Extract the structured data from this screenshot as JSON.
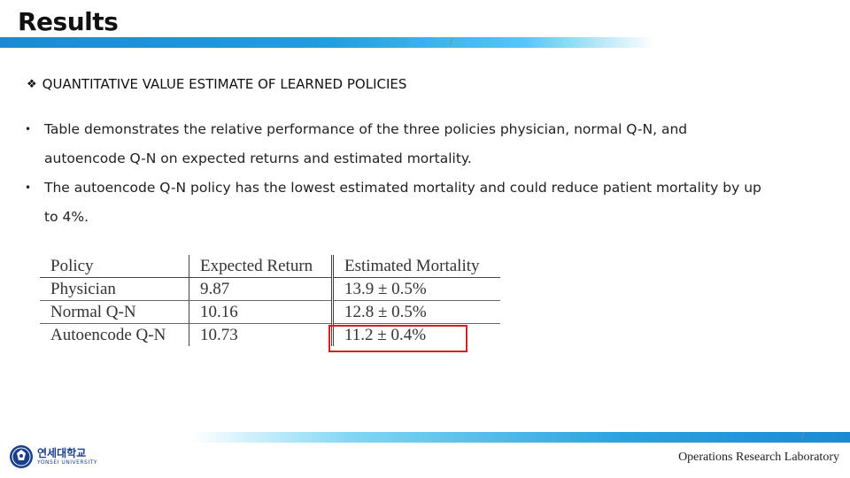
{
  "slide": {
    "title": "Results",
    "section_heading": "QUANTITATIVE VALUE ESTIMATE OF LEARNED POLICIES",
    "bullets": [
      "Table demonstrates the relative performance of the three policies physician, normal Q-N, and autoencode Q-N on expected returns and estimated mortality.",
      "The autoencode Q-N policy has the lowest estimated mortality and could reduce patient mortality by up to 4%."
    ]
  },
  "table": {
    "headers": [
      "Policy",
      "Expected Return",
      "Estimated Mortality"
    ],
    "rows": [
      [
        "Physician",
        "9.87",
        "13.9 ± 0.5%"
      ],
      [
        "Normal Q-N",
        "10.16",
        "12.8 ± 0.5%"
      ],
      [
        "Autoencode Q-N",
        "10.73",
        "11.2 ± 0.4%"
      ]
    ],
    "highlighted_cell": "11.2 ± 0.4%"
  },
  "footer": {
    "university_kr": "연세대학교",
    "university_en": "YONSEI UNIVERSITY",
    "lab": "Operations Research Laboratory"
  },
  "colors": {
    "accent_blue": "#1f9ee0",
    "highlight_red": "#d42020"
  }
}
